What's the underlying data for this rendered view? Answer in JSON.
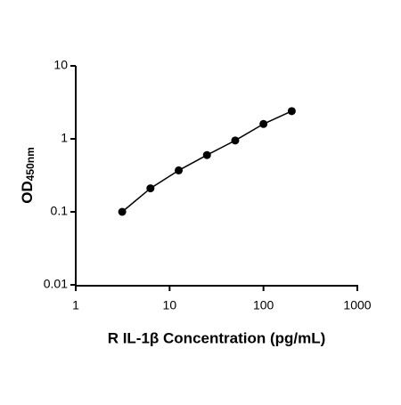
{
  "chart_data": {
    "type": "scatter",
    "x_label": "R IL-1β Concentration (pg/mL)",
    "y_label": {
      "text": "OD",
      "subscript": "450nm"
    },
    "x": [
      3.125,
      6.25,
      12.5,
      25,
      50,
      100,
      200
    ],
    "series": [
      {
        "values": [
          0.1,
          0.21,
          0.37,
          0.6,
          0.95,
          1.6,
          2.4
        ],
        "color": "#000000"
      }
    ],
    "connect": true,
    "xscale": "log",
    "yscale": "log",
    "xlim": [
      1,
      1000
    ],
    "xticks": [
      1,
      10,
      100,
      1000
    ],
    "ylim": [
      0.01,
      10
    ],
    "yticks": [
      0.01,
      0.1,
      1,
      10
    ],
    "grid": false
  }
}
